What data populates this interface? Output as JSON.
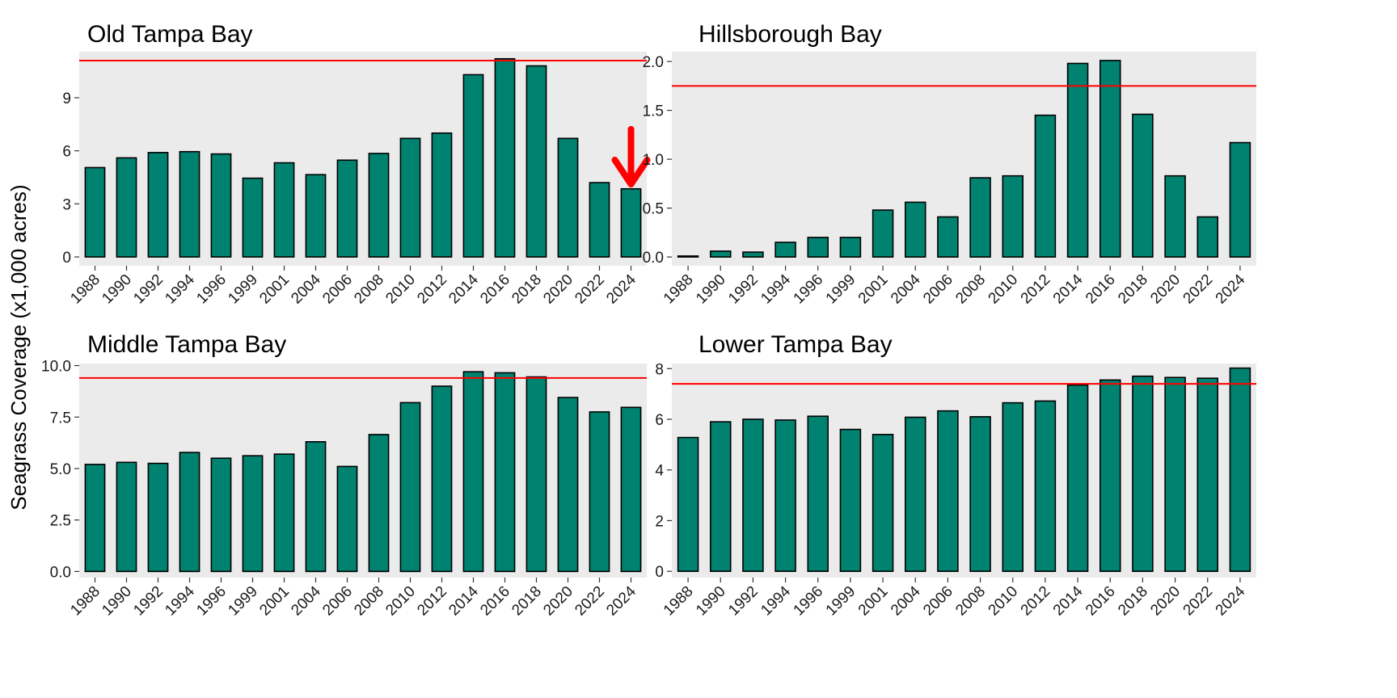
{
  "figure": {
    "ylabel": "Seagrass Coverage (x1,000 acres)",
    "colors": {
      "bar_fill": "#008270",
      "bar_stroke": "#000000",
      "panel_bg": "#ebebeb",
      "target_line": "#ff0000",
      "arrow": "#ff0000"
    }
  },
  "chart_data": [
    {
      "type": "bar",
      "title": "Old Tampa Bay",
      "categories": [
        "1988",
        "1990",
        "1992",
        "1994",
        "1996",
        "1999",
        "2001",
        "2004",
        "2006",
        "2008",
        "2010",
        "2012",
        "2014",
        "2016",
        "2018",
        "2020",
        "2022",
        "2024"
      ],
      "values": [
        5.05,
        5.6,
        5.9,
        5.95,
        5.82,
        4.45,
        5.32,
        4.65,
        5.47,
        5.85,
        6.7,
        7.0,
        10.3,
        11.2,
        10.8,
        6.7,
        4.2,
        3.85
      ],
      "target": 11.1,
      "ylim": [
        -0.5,
        11.6
      ],
      "yticks": [
        0,
        3,
        6,
        9
      ],
      "ytick_labels": [
        "0",
        "3",
        "6",
        "9"
      ],
      "annotation": "down-arrow-over-2024"
    },
    {
      "type": "bar",
      "title": "Hillsborough Bay",
      "categories": [
        "1988",
        "1990",
        "1992",
        "1994",
        "1996",
        "1999",
        "2001",
        "2004",
        "2006",
        "2008",
        "2010",
        "2012",
        "2014",
        "2016",
        "2018",
        "2020",
        "2022",
        "2024"
      ],
      "values": [
        0.01,
        0.06,
        0.05,
        0.15,
        0.2,
        0.2,
        0.48,
        0.56,
        0.41,
        0.81,
        0.83,
        1.45,
        1.98,
        2.01,
        1.46,
        0.83,
        0.41,
        1.17
      ],
      "target": 1.75,
      "ylim": [
        -0.09,
        2.1
      ],
      "yticks": [
        0.0,
        0.5,
        1.0,
        1.5,
        2.0
      ],
      "ytick_labels": [
        "0.0",
        "0.5",
        "1.0",
        "1.5",
        "2.0"
      ]
    },
    {
      "type": "bar",
      "title": "Middle Tampa Bay",
      "categories": [
        "1988",
        "1990",
        "1992",
        "1994",
        "1996",
        "1999",
        "2001",
        "2004",
        "2006",
        "2008",
        "2010",
        "2012",
        "2014",
        "2016",
        "2018",
        "2020",
        "2022",
        "2024"
      ],
      "values": [
        5.2,
        5.3,
        5.25,
        5.78,
        5.5,
        5.62,
        5.7,
        6.3,
        5.1,
        6.65,
        8.2,
        9.0,
        9.7,
        9.65,
        9.45,
        8.45,
        7.75,
        7.97
      ],
      "target": 9.4,
      "ylim": [
        -0.3,
        10.1
      ],
      "yticks": [
        0.0,
        2.5,
        5.0,
        7.5,
        10.0
      ],
      "ytick_labels": [
        "0.0",
        "2.5",
        "5.0",
        "7.5",
        "10.0"
      ]
    },
    {
      "type": "bar",
      "title": "Lower Tampa Bay",
      "categories": [
        "1988",
        "1990",
        "1992",
        "1994",
        "1996",
        "1999",
        "2001",
        "2004",
        "2006",
        "2008",
        "2010",
        "2012",
        "2014",
        "2016",
        "2018",
        "2020",
        "2022",
        "2024"
      ],
      "values": [
        5.28,
        5.9,
        6.0,
        5.97,
        6.12,
        5.6,
        5.4,
        6.08,
        6.33,
        6.1,
        6.65,
        6.72,
        7.35,
        7.55,
        7.7,
        7.65,
        7.62,
        8.02
      ],
      "target": 7.4,
      "ylim": [
        -0.25,
        8.2
      ],
      "yticks": [
        0,
        2,
        4,
        6,
        8
      ],
      "ytick_labels": [
        "0",
        "2",
        "4",
        "6",
        "8"
      ]
    }
  ]
}
